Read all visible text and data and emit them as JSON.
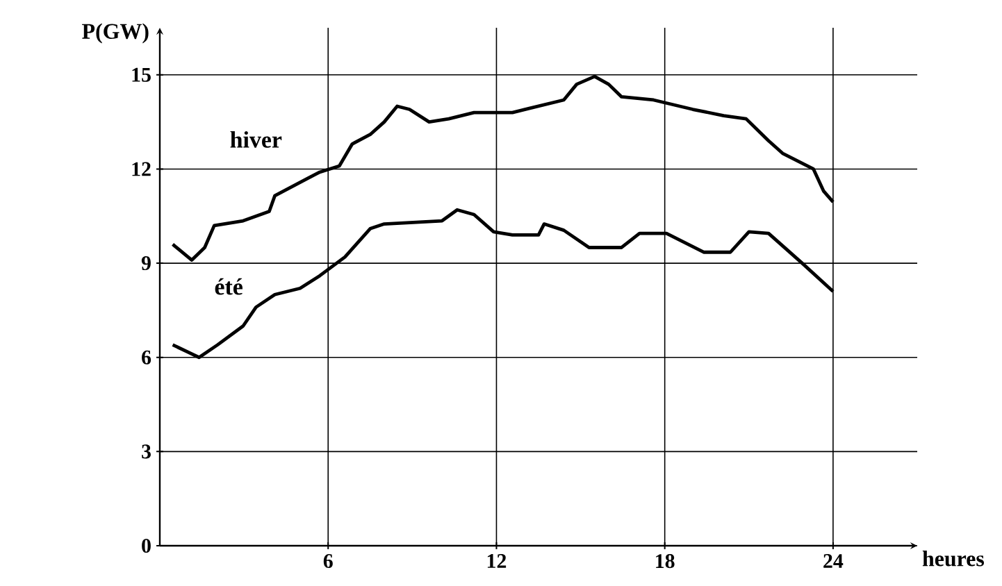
{
  "chart_data": {
    "type": "line",
    "xlabel": "heures",
    "ylabel": "P(GW)",
    "xlim": [
      0,
      27
    ],
    "ylim": [
      0,
      16.5
    ],
    "xticks": [
      6,
      12,
      18,
      24
    ],
    "yticks": [
      0,
      3,
      6,
      9,
      12,
      15
    ],
    "grid": true,
    "marker": "none",
    "line_style": "solid",
    "series": [
      {
        "name": "hiver",
        "color": "#000000",
        "x": [
          0.46,
          1.14,
          1.6,
          1.94,
          2.97,
          3.9,
          4.1,
          5.26,
          5.7,
          6.4,
          6.86,
          7.5,
          8.0,
          8.46,
          8.9,
          9.6,
          10.3,
          11.2,
          12.57,
          14.4,
          14.86,
          15.5,
          16.0,
          16.46,
          17.6,
          19.0,
          20.1,
          20.9,
          21.7,
          22.2,
          23.3,
          23.66,
          24.0
        ],
        "values": [
          9.6,
          9.1,
          9.5,
          10.2,
          10.35,
          10.65,
          11.15,
          11.7,
          11.9,
          12.1,
          12.8,
          13.1,
          13.5,
          14.0,
          13.9,
          13.5,
          13.6,
          13.8,
          13.8,
          14.2,
          14.7,
          14.95,
          14.7,
          14.3,
          14.2,
          13.9,
          13.7,
          13.6,
          12.9,
          12.5,
          12.0,
          11.3,
          10.95
        ]
      },
      {
        "name": "été",
        "color": "#000000",
        "x": [
          0.46,
          1.4,
          2.06,
          2.97,
          3.43,
          4.1,
          5.0,
          5.7,
          6.6,
          7.5,
          8.0,
          10.06,
          10.6,
          11.2,
          11.9,
          12.57,
          13.5,
          13.7,
          14.4,
          15.3,
          16.46,
          17.1,
          18.06,
          19.4,
          20.34,
          21.0,
          21.7,
          22.9,
          24.0
        ],
        "values": [
          6.4,
          6.0,
          6.4,
          7.0,
          7.6,
          8.0,
          8.2,
          8.6,
          9.2,
          10.1,
          10.25,
          10.35,
          10.7,
          10.55,
          10.0,
          9.9,
          9.9,
          10.25,
          10.05,
          9.5,
          9.5,
          9.95,
          9.95,
          9.35,
          9.35,
          10.0,
          9.95,
          9.0,
          8.1
        ]
      }
    ]
  }
}
